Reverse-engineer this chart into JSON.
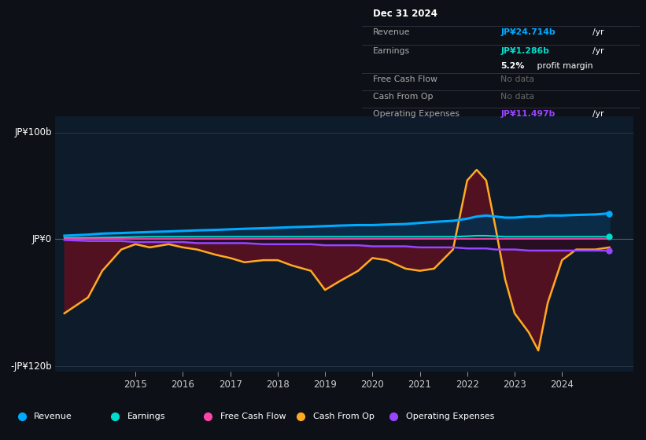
{
  "bg_color": "#0d1117",
  "chart_bg": "#0d1b2a",
  "ylabel_top": "JP¥100b",
  "ylabel_zero": "JP¥0",
  "ylabel_bottom": "-JP¥120b",
  "ylim": [
    -125,
    115
  ],
  "xlim": [
    2013.3,
    2025.5
  ],
  "xticks": [
    2015,
    2016,
    2017,
    2018,
    2019,
    2020,
    2021,
    2022,
    2023,
    2024
  ],
  "years": [
    2013.5,
    2014.0,
    2014.3,
    2014.7,
    2015.0,
    2015.3,
    2015.7,
    2016.0,
    2016.3,
    2016.7,
    2017.0,
    2017.3,
    2017.7,
    2018.0,
    2018.3,
    2018.7,
    2019.0,
    2019.3,
    2019.7,
    2020.0,
    2020.3,
    2020.7,
    2021.0,
    2021.3,
    2021.7,
    2022.0,
    2022.2,
    2022.4,
    2022.6,
    2022.8,
    2023.0,
    2023.3,
    2023.5,
    2023.7,
    2024.0,
    2024.3,
    2024.7,
    2025.0
  ],
  "revenue": [
    3,
    4,
    5,
    5.5,
    6,
    6.5,
    7,
    7.5,
    8,
    8.5,
    9,
    9.5,
    10,
    10.5,
    11,
    11.5,
    12,
    12.5,
    13,
    13,
    13.5,
    14,
    15,
    16,
    17,
    19,
    21,
    22,
    21,
    20,
    20,
    21,
    21,
    22,
    22,
    22.5,
    23,
    24
  ],
  "earnings": [
    1,
    1,
    1.2,
    1.5,
    1.8,
    2,
    2,
    2,
    2,
    2,
    2,
    2,
    2,
    2,
    2,
    2,
    2,
    2,
    2,
    2,
    2,
    2,
    2,
    2,
    2,
    2.5,
    3,
    3,
    2.5,
    2,
    2,
    2,
    2,
    2,
    2,
    2,
    2,
    2
  ],
  "free_cash_flow": [
    0,
    0,
    0,
    0,
    0,
    0,
    0,
    0,
    0,
    0,
    0,
    0,
    0,
    0,
    0,
    0,
    0,
    0,
    0,
    0,
    0,
    0,
    0,
    0,
    0,
    0,
    0,
    0,
    0,
    0,
    0,
    0,
    0,
    0,
    0,
    0,
    0,
    0
  ],
  "cash_from_op": [
    -70,
    -55,
    -30,
    -10,
    -5,
    -8,
    -5,
    -8,
    -10,
    -15,
    -18,
    -22,
    -20,
    -20,
    -25,
    -30,
    -48,
    -40,
    -30,
    -18,
    -20,
    -28,
    -30,
    -28,
    -10,
    55,
    65,
    55,
    10,
    -38,
    -70,
    -88,
    -105,
    -60,
    -20,
    -10,
    -10,
    -8
  ],
  "op_expenses": [
    -1,
    -2,
    -2,
    -2,
    -3,
    -3,
    -3,
    -3,
    -4,
    -4,
    -4,
    -4,
    -5,
    -5,
    -5,
    -5,
    -6,
    -6,
    -6,
    -7,
    -7,
    -7,
    -8,
    -8,
    -8,
    -9,
    -9,
    -9,
    -10,
    -10,
    -10,
    -11,
    -11,
    -11,
    -11,
    -11,
    -11,
    -11
  ],
  "revenue_color": "#00aaff",
  "earnings_color": "#00ddcc",
  "free_cash_flow_color": "#ff44aa",
  "cash_from_op_color": "#ffaa22",
  "op_expenses_color": "#9944ff",
  "info_box": {
    "date": "Dec 31 2024",
    "revenue_val": "JP¥24.714b",
    "earnings_val": "JP¥1.286b",
    "profit_margin": "5.2%",
    "op_expenses_val": "JP¥11.497b"
  },
  "legend_items": [
    "Revenue",
    "Earnings",
    "Free Cash Flow",
    "Cash From Op",
    "Operating Expenses"
  ],
  "legend_colors": [
    "#00aaff",
    "#00ddcc",
    "#ff44aa",
    "#ffaa22",
    "#9944ff"
  ]
}
